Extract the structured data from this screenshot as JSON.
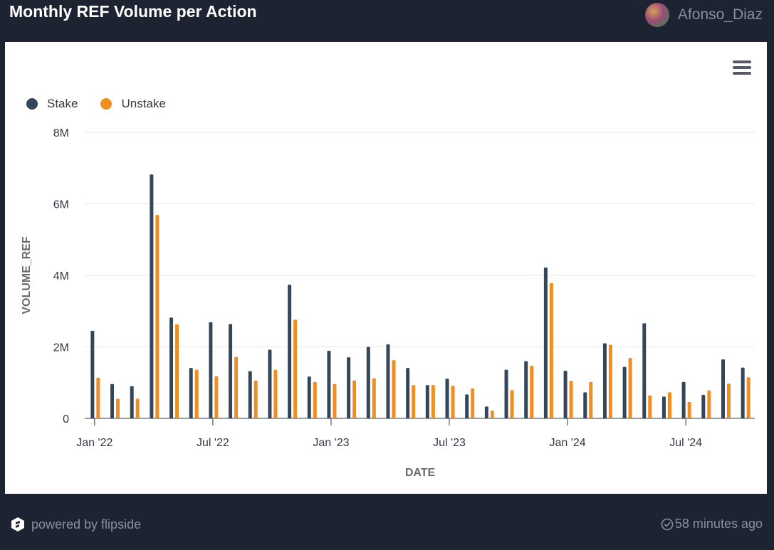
{
  "header": {
    "title": "Monthly REF Volume per Action",
    "user_name": "Afonso_Diaz"
  },
  "footer": {
    "powered_by": "powered by flipside",
    "updated": "58 minutes ago"
  },
  "colors": {
    "stake": "#34465a",
    "unstake": "#f28d22",
    "background": "#1e2331"
  },
  "chart_data": {
    "type": "bar",
    "xlabel": "DATE",
    "ylabel": "VOLUME_REF",
    "ylim": [
      0,
      8000000
    ],
    "y_ticks": [
      0,
      2000000,
      4000000,
      6000000,
      8000000
    ],
    "y_tick_labels": [
      "0",
      "2M",
      "4M",
      "6M",
      "8M"
    ],
    "x_tick_labels": [
      {
        "label": "Jan '22",
        "month_index": 0
      },
      {
        "label": "Jul '22",
        "month_index": 6
      },
      {
        "label": "Jan '23",
        "month_index": 12
      },
      {
        "label": "Jul '23",
        "month_index": 18
      },
      {
        "label": "Jan '24",
        "month_index": 24
      },
      {
        "label": "Jul '24",
        "month_index": 30
      }
    ],
    "categories": [
      "2022-01",
      "2022-02",
      "2022-03",
      "2022-04",
      "2022-05",
      "2022-06",
      "2022-07",
      "2022-08",
      "2022-09",
      "2022-10",
      "2022-11",
      "2022-12",
      "2023-01",
      "2023-02",
      "2023-03",
      "2023-04",
      "2023-05",
      "2023-06",
      "2023-07",
      "2023-08",
      "2023-09",
      "2023-10",
      "2023-11",
      "2023-12",
      "2024-01",
      "2024-02",
      "2024-03",
      "2024-04",
      "2024-05",
      "2024-06",
      "2024-07",
      "2024-08",
      "2024-09",
      "2024-10"
    ],
    "legend_position": "top-left",
    "grid": true,
    "series": [
      {
        "name": "Stake",
        "values": [
          2450000,
          960000,
          900000,
          6820000,
          2820000,
          1410000,
          2690000,
          2640000,
          1320000,
          1920000,
          3740000,
          1170000,
          1890000,
          1710000,
          2000000,
          2070000,
          1410000,
          930000,
          1110000,
          670000,
          330000,
          1360000,
          1600000,
          4220000,
          1330000,
          730000,
          2100000,
          1440000,
          2660000,
          610000,
          1020000,
          660000,
          1650000,
          1420000
        ]
      },
      {
        "name": "Unstake",
        "values": [
          1140000,
          550000,
          550000,
          5690000,
          2630000,
          1360000,
          1180000,
          1720000,
          1060000,
          1360000,
          2760000,
          1020000,
          960000,
          1060000,
          1120000,
          1630000,
          930000,
          930000,
          910000,
          840000,
          220000,
          790000,
          1470000,
          3780000,
          1050000,
          1020000,
          2060000,
          1690000,
          640000,
          730000,
          460000,
          780000,
          970000,
          1150000
        ]
      }
    ]
  }
}
